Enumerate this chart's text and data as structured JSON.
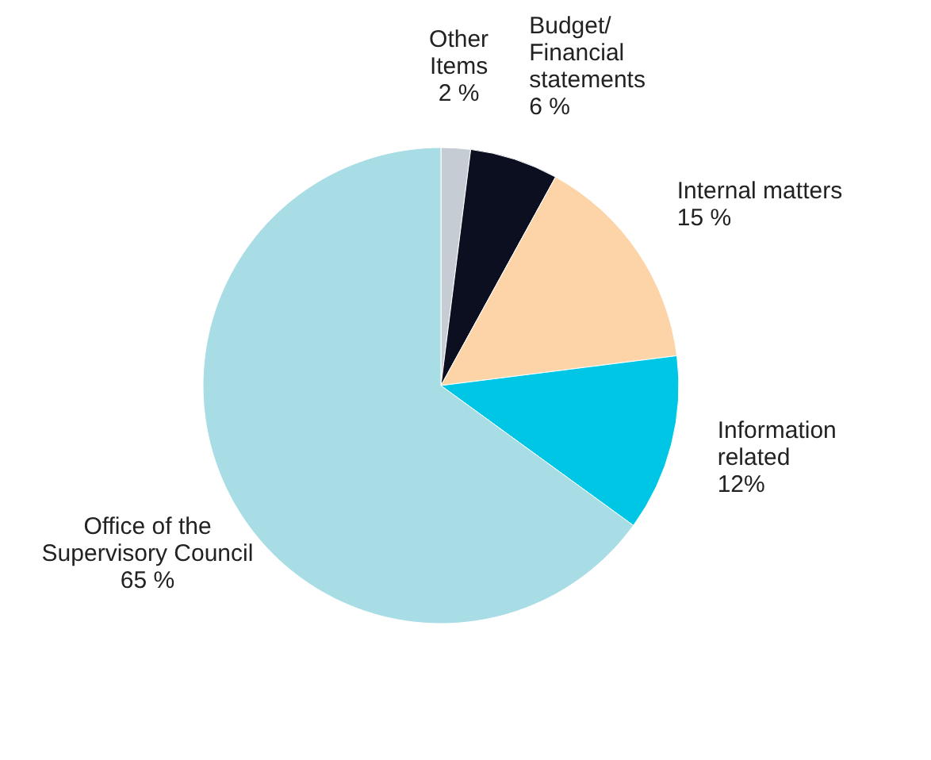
{
  "chart_data": {
    "type": "pie",
    "categories": [
      "Other\nItems",
      "Budget/\nFinancial\nstatements",
      "Internal matters",
      "Information\nrelated",
      "Office of the\nSupervisory Council"
    ],
    "values": [
      2,
      6,
      15,
      12,
      65
    ],
    "colors": [
      "#c5ccd4",
      "#0b0f1f",
      "#fcd4a8",
      "#00c6e6",
      "#a9dde6"
    ],
    "value_labels": [
      "2 %",
      "6 %",
      "15 %",
      "12%",
      "65 %"
    ]
  }
}
